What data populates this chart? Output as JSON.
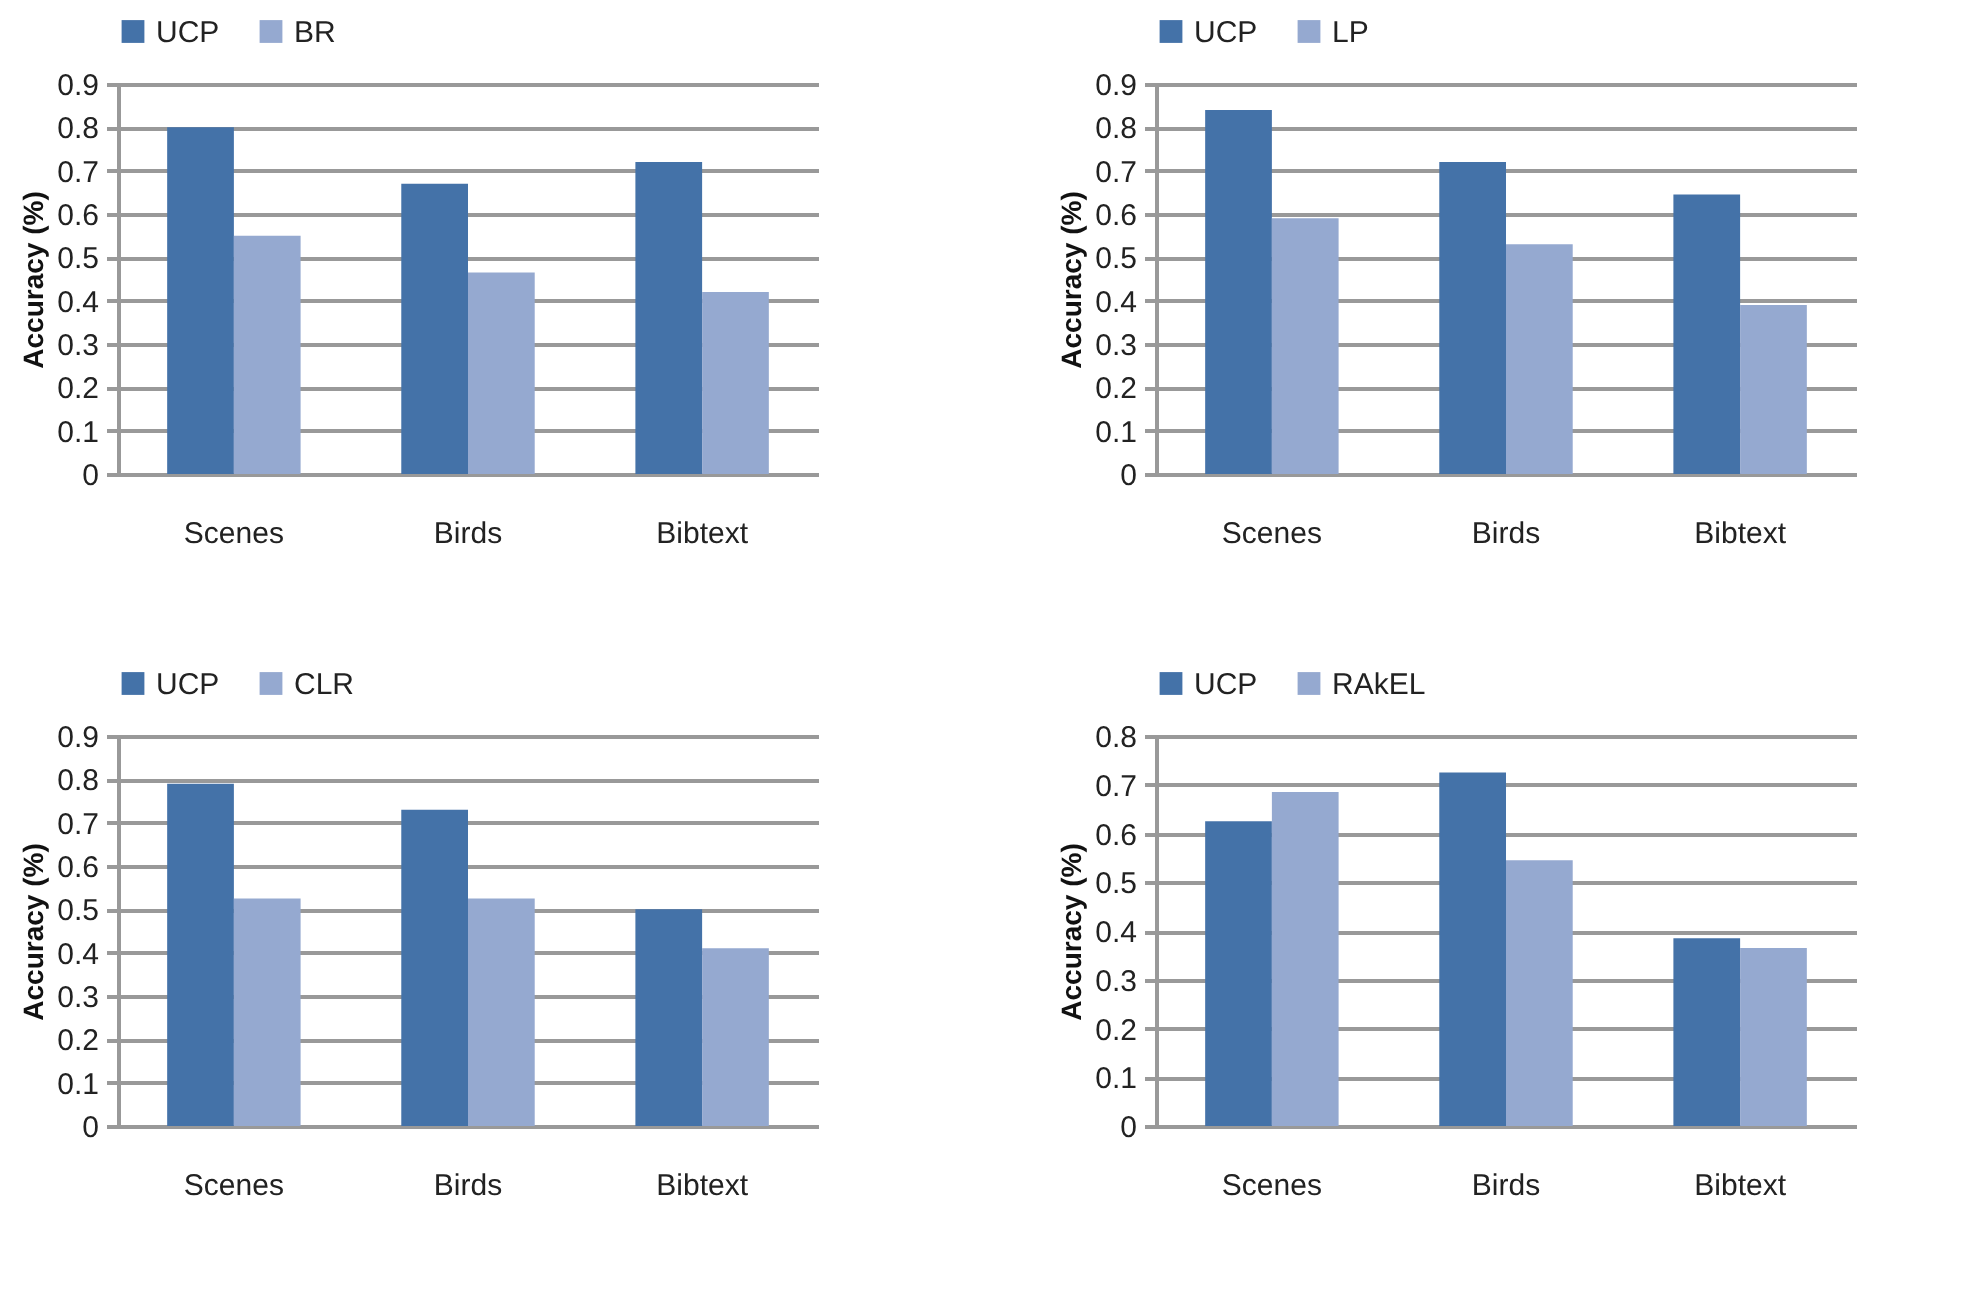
{
  "chart_data": [
    {
      "type": "bar",
      "categories": [
        "Scenes",
        "Birds",
        "Bibtext"
      ],
      "ylabel": "Accuracy (%)",
      "ylim": [
        0,
        0.9
      ],
      "yticks": [
        0,
        0.1,
        0.2,
        0.3,
        0.4,
        0.5,
        0.6,
        0.7,
        0.8,
        0.9
      ],
      "grid": "y",
      "legend": "top",
      "series": [
        {
          "name": "UCP",
          "color": "#4472a8",
          "values": [
            0.8,
            0.67,
            0.72
          ]
        },
        {
          "name": "BR",
          "color": "#95a9d0",
          "values": [
            0.55,
            0.465,
            0.42
          ]
        }
      ]
    },
    {
      "type": "bar",
      "categories": [
        "Scenes",
        "Birds",
        "Bibtext"
      ],
      "ylabel": "Accuracy (%)",
      "ylim": [
        0,
        0.9
      ],
      "yticks": [
        0,
        0.1,
        0.2,
        0.3,
        0.4,
        0.5,
        0.6,
        0.7,
        0.8,
        0.9
      ],
      "grid": "y",
      "legend": "top",
      "series": [
        {
          "name": "UCP",
          "color": "#4472a8",
          "values": [
            0.84,
            0.72,
            0.645
          ]
        },
        {
          "name": "LP",
          "color": "#95a9d0",
          "values": [
            0.59,
            0.53,
            0.39
          ]
        }
      ]
    },
    {
      "type": "bar",
      "categories": [
        "Scenes",
        "Birds",
        "Bibtext"
      ],
      "ylabel": "Accuracy (%)",
      "ylim": [
        0,
        0.9
      ],
      "yticks": [
        0,
        0.1,
        0.2,
        0.3,
        0.4,
        0.5,
        0.6,
        0.7,
        0.8,
        0.9
      ],
      "grid": "y",
      "legend": "top",
      "series": [
        {
          "name": "UCP",
          "color": "#4472a8",
          "values": [
            0.79,
            0.73,
            0.5
          ]
        },
        {
          "name": "CLR",
          "color": "#95a9d0",
          "values": [
            0.525,
            0.525,
            0.41
          ]
        }
      ]
    },
    {
      "type": "bar",
      "categories": [
        "Scenes",
        "Birds",
        "Bibtext"
      ],
      "ylabel": "Accuracy (%)",
      "ylim": [
        0,
        0.8
      ],
      "yticks": [
        0,
        0.1,
        0.2,
        0.3,
        0.4,
        0.5,
        0.6,
        0.7,
        0.8
      ],
      "grid": "y",
      "legend": "top",
      "series": [
        {
          "name": "UCP",
          "color": "#4472a8",
          "values": [
            0.625,
            0.725,
            0.385
          ]
        },
        {
          "name": "RAkEL",
          "color": "#95a9d0",
          "values": [
            0.685,
            0.545,
            0.365
          ]
        }
      ]
    }
  ]
}
